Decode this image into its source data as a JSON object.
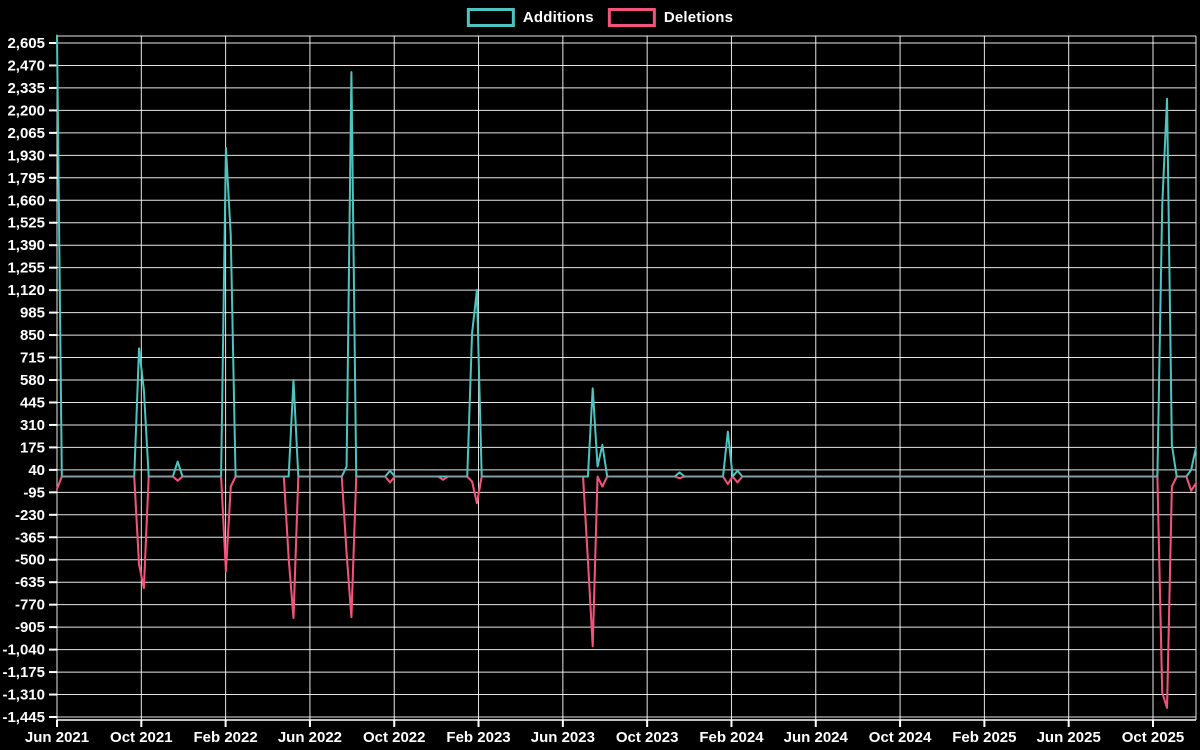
{
  "legend": [
    {
      "label": "Additions",
      "color": "#4cc5c1"
    },
    {
      "label": "Deletions",
      "color": "#f2537a"
    }
  ],
  "colors": {
    "background": "#000000",
    "grid": "#ffffff",
    "text": "#ffffff",
    "additions": "#4cc5c1",
    "deletions": "#f2537a"
  },
  "chart_data": {
    "type": "line",
    "title": "",
    "xlabel": "",
    "ylabel": "",
    "legend_position": "top-center",
    "grid": true,
    "x_labels": [
      "Jun 2021",
      "Oct 2021",
      "Feb 2022",
      "Jun 2022",
      "Oct 2022",
      "Feb 2023",
      "Jun 2023",
      "Oct 2023",
      "Feb 2024",
      "Jun 2024",
      "Oct 2024",
      "Feb 2025",
      "Jun 2025",
      "Oct 2025"
    ],
    "y_tick_labels": [
      "2,605",
      "2,470",
      "2,335",
      "2,200",
      "2,065",
      "1,930",
      "1,795",
      "1,660",
      "1,525",
      "1,390",
      "1,255",
      "1,120",
      "985",
      "850",
      "715",
      "580",
      "445",
      "310",
      "175",
      "40",
      "-95",
      "-230",
      "-365",
      "-500",
      "-635",
      "-770",
      "-905",
      "-1,040",
      "-1,175",
      "-1,310",
      "-1,445"
    ],
    "y_tick_step": 135,
    "ylim": [
      -1463,
      2650
    ],
    "weeks_total": 236,
    "weeks_note": "weekly samples from Jun 2021 to mid Dec 2025; weeks not listed in spikes are 0",
    "series": [
      {
        "name": "Additions",
        "color": "#4cc5c1",
        "spikes": {
          "0": 2650,
          "17": 770,
          "18": 520,
          "25": 90,
          "35": 1975,
          "36": 1450,
          "49": 580,
          "60": 60,
          "61": 2430,
          "69": 35,
          "86": 860,
          "87": 1120,
          "111": 530,
          "112": 60,
          "113": 190,
          "129": 25,
          "139": 270,
          "141": 35,
          "229": 1630,
          "230": 2270,
          "231": 190,
          "235": 40,
          "236": 175
        }
      },
      {
        "name": "Deletions",
        "color": "#f2537a",
        "spikes": {
          "0": -75,
          "17": -530,
          "18": -670,
          "25": -25,
          "35": -570,
          "36": -60,
          "48": -490,
          "49": -850,
          "60": -460,
          "61": -845,
          "69": -35,
          "80": -20,
          "86": -30,
          "87": -160,
          "110": -500,
          "111": -1020,
          "113": -60,
          "129": -10,
          "139": -45,
          "141": -35,
          "229": -1300,
          "230": -1390,
          "231": -60,
          "235": -85,
          "236": -40
        }
      }
    ]
  }
}
